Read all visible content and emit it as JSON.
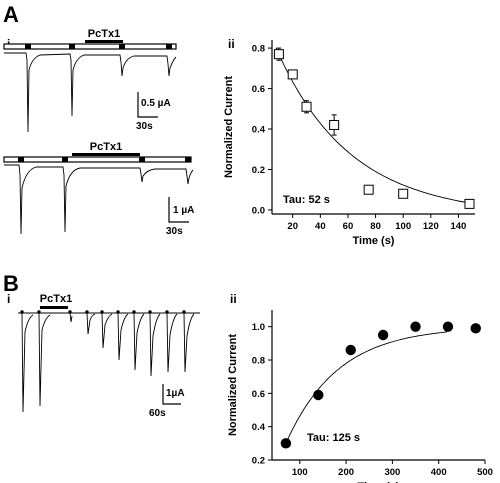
{
  "panels": {
    "a": {
      "label": "A",
      "trace_i": {
        "sublabel": "i",
        "trace1_drug": "PcTx1",
        "trace1_scale_y": "0.5 µA",
        "trace1_scale_x": "30s",
        "trace2_drug": "PcTx1",
        "trace2_scale_y": "1 µA",
        "trace2_scale_x": "30s"
      },
      "plot_ii": {
        "sublabel": "ii",
        "annotation": "Tau: 52 s"
      }
    },
    "b": {
      "label": "B",
      "trace_i": {
        "sublabel": "i",
        "drug": "PcTx1",
        "scale_y": "1µA",
        "scale_x": "60s"
      },
      "plot_ii": {
        "sublabel": "ii",
        "annotation": "Tau: 125 s"
      }
    }
  },
  "chart_data": [
    {
      "type": "scatter",
      "panel": "A-ii",
      "xlabel": "Time (s)",
      "ylabel": "Normalized Current",
      "xlim": [
        5,
        152
      ],
      "ylim": [
        -0.02,
        0.84
      ],
      "xticks": [
        20,
        40,
        60,
        80,
        100,
        120,
        140
      ],
      "yticks": [
        0.0,
        0.2,
        0.4,
        0.6,
        0.8
      ],
      "tick_labels_x": [
        "20",
        "40",
        "60",
        "80",
        "100",
        "120",
        "140"
      ],
      "tick_labels_y": [
        "0.0",
        "0.2",
        "0.4",
        "0.6",
        "0.8"
      ],
      "marker": "open-square",
      "points": [
        {
          "x": 10,
          "y": 0.77,
          "err": 0.03
        },
        {
          "x": 20,
          "y": 0.67,
          "err": 0.02
        },
        {
          "x": 30,
          "y": 0.51,
          "err": 0.03
        },
        {
          "x": 50,
          "y": 0.42,
          "err": 0.05
        },
        {
          "x": 75,
          "y": 0.1,
          "err": 0.0
        },
        {
          "x": 100,
          "y": 0.08,
          "err": 0.0
        },
        {
          "x": 148,
          "y": 0.03,
          "err": 0.0
        }
      ],
      "fit": {
        "kind": "exponential-decay",
        "tau": 52
      },
      "grid": false
    },
    {
      "type": "scatter",
      "panel": "B-ii",
      "xlabel": "Time (s)",
      "ylabel": "Normalized Current",
      "xlim": [
        40,
        500
      ],
      "ylim": [
        0.2,
        1.1
      ],
      "xticks": [
        100,
        200,
        300,
        400,
        500
      ],
      "yticks": [
        0.2,
        0.4,
        0.6,
        0.8,
        1.0
      ],
      "tick_labels_x": [
        "100",
        "200",
        "300",
        "400",
        "500"
      ],
      "tick_labels_y": [
        "0.2",
        "0.4",
        "0.6",
        "0.8",
        "1.0"
      ],
      "marker": "filled-circle",
      "points": [
        {
          "x": 70,
          "y": 0.3
        },
        {
          "x": 140,
          "y": 0.59
        },
        {
          "x": 210,
          "y": 0.86
        },
        {
          "x": 280,
          "y": 0.95
        },
        {
          "x": 350,
          "y": 1.0
        },
        {
          "x": 420,
          "y": 1.0
        },
        {
          "x": 480,
          "y": 0.99
        }
      ],
      "fit": {
        "kind": "exponential-recovery",
        "tau": 125
      },
      "grid": false
    }
  ]
}
